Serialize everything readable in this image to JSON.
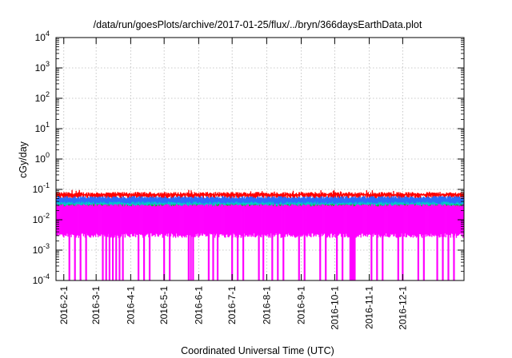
{
  "chart_data": {
    "type": "line",
    "title": "/data/run/goesPlots/archive/2017-01-25/flux/../bryn/366daysEarthData.plot",
    "xlabel": "Coordinated Universal Time (UTC)",
    "ylabel": "cGy/day",
    "yscale": "log",
    "ylim": [
      0.0001,
      10000
    ],
    "xlim": [
      "2016-01-25",
      "2017-01-25"
    ],
    "grid": true,
    "legend": "none",
    "y_ticks": [
      {
        "mantissa": "10",
        "exp": "-4",
        "value": 0.0001
      },
      {
        "mantissa": "10",
        "exp": "-3",
        "value": 0.001
      },
      {
        "mantissa": "10",
        "exp": "-2",
        "value": 0.01
      },
      {
        "mantissa": "10",
        "exp": "-1",
        "value": 0.1
      },
      {
        "mantissa": "10",
        "exp": "0",
        "value": 1
      },
      {
        "mantissa": "10",
        "exp": "1",
        "value": 10
      },
      {
        "mantissa": "10",
        "exp": "2",
        "value": 100
      },
      {
        "mantissa": "10",
        "exp": "3",
        "value": 1000
      },
      {
        "mantissa": "10",
        "exp": "4",
        "value": 10000
      }
    ],
    "x_ticks": [
      {
        "label": "2016-2-1",
        "date": "2016-02-01"
      },
      {
        "label": "2016-3-1",
        "date": "2016-03-01"
      },
      {
        "label": "2016-4-1",
        "date": "2016-04-01"
      },
      {
        "label": "2016-5-1",
        "date": "2016-05-01"
      },
      {
        "label": "2016-6-1",
        "date": "2016-06-01"
      },
      {
        "label": "2016-7-1",
        "date": "2016-07-01"
      },
      {
        "label": "2016-8-1",
        "date": "2016-08-01"
      },
      {
        "label": "2016-9-1",
        "date": "2016-09-01"
      },
      {
        "label": "2016-10-1",
        "date": "2016-10-01"
      },
      {
        "label": "2016-11-1",
        "date": "2016-11-01"
      },
      {
        "label": "2016-12-1",
        "date": "2016-12-01"
      }
    ],
    "series": [
      {
        "color": "#ff0000",
        "upper": 0.075,
        "lower": 0.055
      },
      {
        "color": "#2b6cff",
        "upper": 0.055,
        "lower": 0.028
      },
      {
        "color": "#00c8c8",
        "upper": 0.036,
        "lower": 0.022
      },
      {
        "color": "#22aa22",
        "upper": 0.03,
        "lower": 0.024
      },
      {
        "color": "#ff00ff",
        "upper": 0.03,
        "lower": 0.003
      }
    ],
    "dropouts_to_floor": [
      "2016-02-06",
      "2016-02-11",
      "2016-02-16",
      "2016-02-21",
      "2016-03-07",
      "2016-03-10",
      "2016-03-13",
      "2016-03-16",
      "2016-03-19",
      "2016-03-22",
      "2016-03-25",
      "2016-04-08",
      "2016-04-13",
      "2016-04-18",
      "2016-05-01",
      "2016-05-06",
      "2016-05-23",
      "2016-05-25",
      "2016-05-27",
      "2016-06-10",
      "2016-06-14",
      "2016-06-18",
      "2016-07-01",
      "2016-07-06",
      "2016-07-11",
      "2016-07-25",
      "2016-07-29",
      "2016-08-06",
      "2016-08-11",
      "2016-08-16",
      "2016-08-30",
      "2016-09-04",
      "2016-09-18",
      "2016-09-23",
      "2016-10-03",
      "2016-10-08",
      "2016-10-15",
      "2016-10-16",
      "2016-10-17",
      "2016-10-18",
      "2016-10-19",
      "2016-11-03",
      "2016-11-08",
      "2016-11-13",
      "2016-11-27",
      "2016-12-01",
      "2016-12-15",
      "2016-12-20",
      "2017-01-01",
      "2017-01-06",
      "2017-01-11",
      "2017-01-16"
    ]
  }
}
